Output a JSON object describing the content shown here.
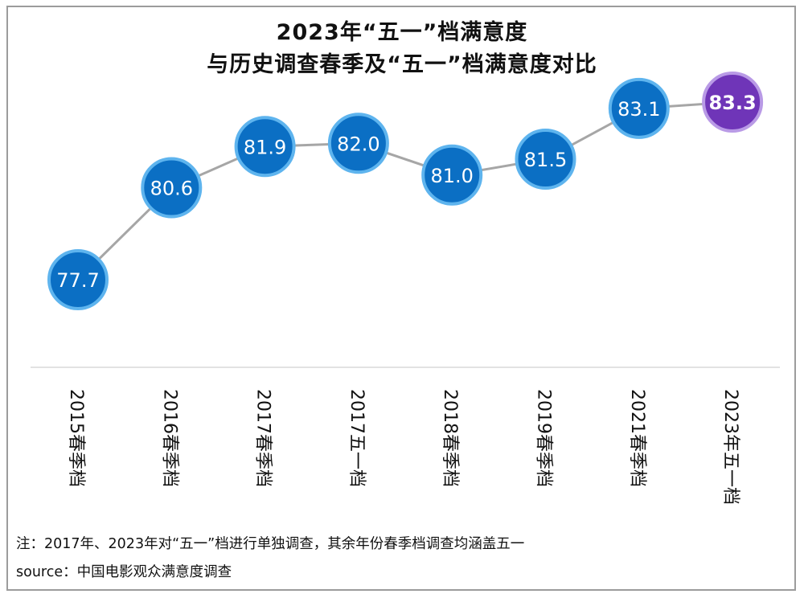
{
  "chart_data": {
    "type": "line",
    "title_line1": "2023年“五一”档满意度",
    "title_line2": "与历史调查春季及“五一”档满意度对比",
    "categories": [
      "2015春季档",
      "2016春季档",
      "2017春季档",
      "2017五一档",
      "2018春季档",
      "2019春季档",
      "2021春季档",
      "2023年五一档"
    ],
    "values": [
      77.7,
      80.6,
      81.9,
      82.0,
      81.0,
      81.5,
      83.1,
      83.3
    ],
    "value_labels": [
      "77.7",
      "80.6",
      "81.9",
      "82.0",
      "81.0",
      "81.5",
      "83.1",
      "83.3"
    ],
    "ylim": [
      77.7,
      83.3
    ],
    "highlight_index": 7,
    "colors": {
      "marker": "#0b6fc4",
      "marker_border": "#5eb4ee",
      "highlight": "#6f35b8",
      "highlight_border": "#b99ae6",
      "line": "#a6a6a6",
      "baseline": "#d9d9d9"
    },
    "grid": false,
    "legend": "none"
  },
  "note": "注：2017年、2023年对“五一”档进行单独调查，其余年份春季档调查均涵盖五一",
  "source": "source：中国电影观众满意度调查"
}
